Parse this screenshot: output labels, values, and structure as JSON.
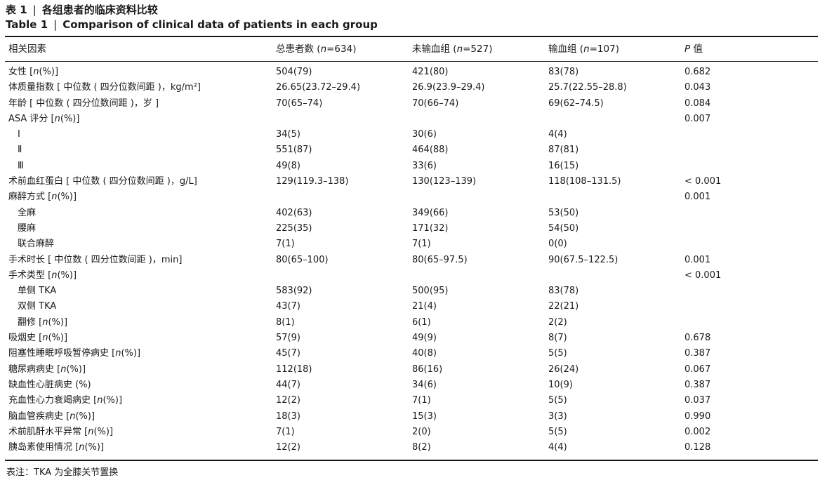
{
  "caption": {
    "label_cn": "表 1",
    "separator": "|",
    "title_cn": "各组患者的临床资料比较",
    "label_en": "Table 1",
    "title_en": "Comparison of clinical data of patients in each group"
  },
  "table": {
    "headers": [
      "相关因素",
      "总患者数 (n=634)",
      "未输血组 (n=527)",
      "输血组 (n=107)",
      "P 值"
    ],
    "rows": [
      {
        "indent": 0,
        "cells": [
          "女性 [n(%)]",
          "504(79)",
          "421(80)",
          "83(78)",
          "0.682"
        ]
      },
      {
        "indent": 0,
        "cells": [
          "体质量指数 [ 中位数 ( 四分位数间距 )，kg/m²]",
          "26.65(23.72–29.4)",
          "26.9(23.9–29.4)",
          "25.7(22.55–28.8)",
          "0.043"
        ]
      },
      {
        "indent": 0,
        "cells": [
          "年龄 [ 中位数 ( 四分位数间距 )，岁 ]",
          "70(65–74)",
          "70(66–74)",
          "69(62–74.5)",
          "0.084"
        ]
      },
      {
        "indent": 0,
        "cells": [
          "ASA 评分 [n(%)]",
          "",
          "",
          "",
          "0.007"
        ]
      },
      {
        "indent": 1,
        "cells": [
          "Ⅰ",
          "34(5)",
          "30(6)",
          "4(4)",
          ""
        ]
      },
      {
        "indent": 1,
        "cells": [
          "Ⅱ",
          "551(87)",
          "464(88)",
          "87(81)",
          ""
        ]
      },
      {
        "indent": 1,
        "cells": [
          "Ⅲ",
          "49(8)",
          "33(6)",
          "16(15)",
          ""
        ]
      },
      {
        "indent": 0,
        "cells": [
          "术前血红蛋白 [ 中位数 ( 四分位数间距 )，g/L]",
          "129(119.3–138)",
          "130(123–139)",
          "118(108–131.5)",
          "< 0.001"
        ]
      },
      {
        "indent": 0,
        "cells": [
          "麻醉方式 [n(%)]",
          "",
          "",
          "",
          "0.001"
        ]
      },
      {
        "indent": 1,
        "cells": [
          "全麻",
          "402(63)",
          "349(66)",
          "53(50)",
          ""
        ]
      },
      {
        "indent": 1,
        "cells": [
          "腰麻",
          "225(35)",
          "171(32)",
          "54(50)",
          ""
        ]
      },
      {
        "indent": 1,
        "cells": [
          "联合麻醉",
          "7(1)",
          "7(1)",
          "0(0)",
          ""
        ]
      },
      {
        "indent": 0,
        "cells": [
          "手术时长 [ 中位数 ( 四分位数间距 )，min]",
          "80(65–100)",
          "80(65–97.5)",
          "90(67.5–122.5)",
          "0.001"
        ]
      },
      {
        "indent": 0,
        "cells": [
          "手术类型 [n(%)]",
          "",
          "",
          "",
          "< 0.001"
        ]
      },
      {
        "indent": 1,
        "cells": [
          "单侧 TKA",
          "583(92)",
          "500(95)",
          "83(78)",
          ""
        ]
      },
      {
        "indent": 1,
        "cells": [
          "双侧 TKA",
          "43(7)",
          "21(4)",
          "22(21)",
          ""
        ]
      },
      {
        "indent": 1,
        "cells": [
          "翻修 [n(%)]",
          "8(1)",
          "6(1)",
          "2(2)",
          ""
        ]
      },
      {
        "indent": 0,
        "cells": [
          "吸烟史 [n(%)]",
          "57(9)",
          "49(9)",
          "8(7)",
          "0.678"
        ]
      },
      {
        "indent": 0,
        "cells": [
          "阻塞性睡眠呼吸暂停病史 [n(%)]",
          "45(7)",
          "40(8)",
          "5(5)",
          "0.387"
        ]
      },
      {
        "indent": 0,
        "cells": [
          "糖尿病病史 [n(%)]",
          "112(18)",
          "86(16)",
          "26(24)",
          "0.067"
        ]
      },
      {
        "indent": 0,
        "cells": [
          "缺血性心脏病史 (%)",
          "44(7)",
          "34(6)",
          "10(9)",
          "0.387"
        ]
      },
      {
        "indent": 0,
        "cells": [
          "充血性心力衰竭病史 [n(%)]",
          "12(2)",
          "7(1)",
          "5(5)",
          "0.037"
        ]
      },
      {
        "indent": 0,
        "cells": [
          "脑血管疾病史 [n(%)]",
          "18(3)",
          "15(3)",
          "3(3)",
          "0.990"
        ]
      },
      {
        "indent": 0,
        "cells": [
          "术前肌酐水平异常 [n(%)]",
          "7(1)",
          "2(0)",
          "5(5)",
          "0.002"
        ]
      },
      {
        "indent": 0,
        "cells": [
          "胰岛素使用情况 [n(%)]",
          "12(2)",
          "8(2)",
          "4(4)",
          "0.128"
        ]
      }
    ]
  },
  "footnote": "表注：TKA 为全膝关节置换"
}
